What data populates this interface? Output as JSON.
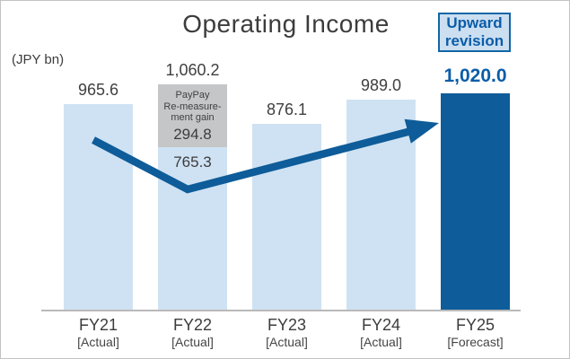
{
  "header": {
    "title": "Operating Income",
    "unit_label": "(JPY bn)",
    "badge": {
      "line1": "Upward",
      "line2": "revision"
    }
  },
  "chart_data": {
    "type": "bar",
    "title": "Operating Income",
    "unit": "JPY bn",
    "categories": [
      "FY21",
      "FY22",
      "FY23",
      "FY24",
      "FY25"
    ],
    "category_sublabels": [
      "[Actual]",
      "[Actual]",
      "[Actual]",
      "[Actual]",
      "[Forecast]"
    ],
    "values": [
      965.6,
      1060.2,
      876.1,
      989.0,
      1020.0
    ],
    "value_labels": [
      "965.6",
      "1,060.2",
      "876.1",
      "989.0",
      "1,020.0"
    ],
    "highlight_index": 4,
    "stacked_index": 1,
    "stacked_segments": [
      {
        "name": "operating-income-base",
        "value": 765.3,
        "label": "765.3",
        "color": "#cfe2f3"
      },
      {
        "name": "paypay-remeasurement-gain",
        "value": 294.8,
        "label": "294.8",
        "color": "#c5c6c8",
        "note_lines": [
          "PayPay",
          "Re-measure-",
          "ment gain"
        ]
      }
    ],
    "bar_colors": [
      "#cfe2f3",
      "#cfe2f3",
      "#cfe2f3",
      "#cfe2f3",
      "#0e5c99"
    ],
    "accent_color": "#0e5c99",
    "axis_line_color": "#b9b9b9",
    "trend_arrow": true,
    "legend": null,
    "ylim": [
      0,
      1120
    ],
    "grid": false
  }
}
